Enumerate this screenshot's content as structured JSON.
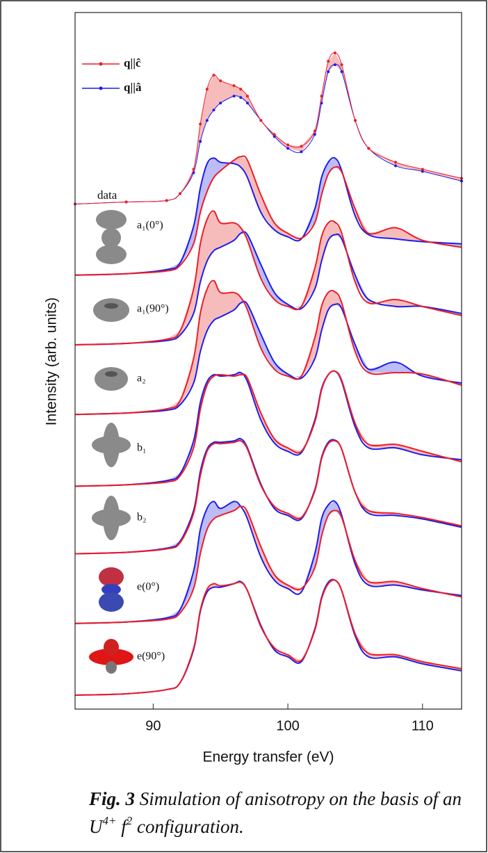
{
  "chart_data": {
    "type": "line",
    "xlabel": "Energy transfer (eV)",
    "ylabel": "Intensity (arb. units)",
    "x": [
      84.2,
      88,
      91,
      92,
      93,
      93.5,
      94,
      94.5,
      95,
      96,
      96.5,
      97,
      98,
      99,
      100,
      101,
      102,
      102.5,
      103,
      103.5,
      104,
      105,
      106,
      108,
      110,
      112.9
    ],
    "xlim": [
      84.2,
      112.9
    ],
    "xticks": [
      90,
      100,
      110
    ],
    "ylim": [
      0,
      1000
    ],
    "data_label": "data",
    "series": [
      {
        "name": "q||ĉ",
        "color": "#ee1c25",
        "values": [
          725,
          728,
          730,
          740,
          775,
          840,
          890,
          910,
          902,
          895,
          890,
          880,
          845,
          825,
          810,
          808,
          830,
          880,
          930,
          942,
          925,
          845,
          805,
          785,
          775,
          762
        ]
      },
      {
        "name": "q||â",
        "color": "#1c1cee",
        "values": [
          725,
          728,
          730,
          740,
          770,
          815,
          845,
          860,
          870,
          880,
          878,
          870,
          845,
          822,
          805,
          800,
          825,
          870,
          915,
          925,
          915,
          845,
          805,
          780,
          772,
          758
        ]
      }
    ],
    "panels": [
      {
        "label": "a₁(0°)",
        "values_c": [
          623,
          625,
          629,
          637,
          668,
          713,
          743,
          763,
          773,
          788,
          793,
          788,
          738,
          698,
          683,
          676,
          698,
          738,
          768,
          778,
          771,
          718,
          683,
          691,
          673,
          663
        ],
        "values_a": [
          623,
          625,
          631,
          641,
          693,
          748,
          783,
          791,
          785,
          783,
          778,
          763,
          713,
          688,
          678,
          675,
          718,
          763,
          785,
          791,
          773,
          708,
          681,
          675,
          671,
          668
        ]
      },
      {
        "label": "a₁(90°)",
        "values_c": [
          523,
          525,
          531,
          543,
          603,
          668,
          703,
          715,
          698,
          698,
          691,
          673,
          618,
          588,
          578,
          578,
          633,
          678,
          698,
          699,
          683,
          613,
          583,
          588,
          578,
          565
        ],
        "values_a": [
          523,
          525,
          529,
          537,
          568,
          613,
          643,
          658,
          663,
          673,
          683,
          681,
          638,
          598,
          581,
          575,
          603,
          643,
          673,
          681,
          675,
          623,
          588,
          578,
          578,
          568
        ]
      },
      {
        "label": "a₂",
        "values_c": [
          423,
          425,
          431,
          443,
          503,
          568,
          603,
          615,
          598,
          598,
          591,
          573,
          518,
          488,
          478,
          478,
          533,
          578,
          598,
          599,
          583,
          513,
          483,
          483,
          481,
          465
        ],
        "values_a": [
          423,
          425,
          429,
          437,
          468,
          513,
          543,
          558,
          563,
          573,
          583,
          581,
          538,
          498,
          481,
          475,
          503,
          543,
          573,
          581,
          575,
          523,
          488,
          498,
          478,
          468
        ]
      },
      {
        "label": "b₁",
        "values_c": [
          320,
          322,
          326,
          335,
          375,
          430,
          465,
          478,
          480,
          478,
          480,
          475,
          425,
          388,
          375,
          370,
          412,
          458,
          480,
          485,
          472,
          410,
          380,
          380,
          370,
          355
        ],
        "values_a": [
          320,
          322,
          328,
          338,
          385,
          440,
          470,
          480,
          478,
          480,
          483,
          470,
          415,
          382,
          370,
          368,
          415,
          460,
          480,
          485,
          470,
          405,
          375,
          375,
          365,
          358
        ]
      },
      {
        "label": "b₂",
        "values_c": [
          223,
          225,
          230,
          239,
          281,
          335,
          370,
          381,
          381,
          383,
          385,
          373,
          321,
          291,
          281,
          275,
          313,
          359,
          381,
          385,
          373,
          311,
          285,
          281,
          275,
          263
        ],
        "values_a": [
          223,
          225,
          231,
          241,
          285,
          341,
          373,
          383,
          383,
          385,
          388,
          375,
          323,
          288,
          278,
          273,
          315,
          361,
          383,
          386,
          373,
          311,
          281,
          278,
          273,
          261
        ]
      },
      {
        "label": "e(0°)",
        "values_c": [
          123,
          125,
          129,
          138,
          173,
          223,
          258,
          273,
          278,
          285,
          291,
          283,
          233,
          193,
          178,
          173,
          203,
          248,
          278,
          285,
          275,
          213,
          183,
          183,
          173,
          161
        ],
        "values_a": [
          123,
          125,
          131,
          143,
          198,
          258,
          288,
          298,
          288,
          298,
          291,
          273,
          218,
          185,
          173,
          168,
          223,
          273,
          293,
          298,
          278,
          208,
          178,
          178,
          171,
          163
        ]
      },
      {
        "label": "e(90°)",
        "values_c": [
          20,
          22,
          28,
          38,
          87,
          142,
          172,
          180,
          177,
          180,
          182,
          170,
          118,
          88,
          78,
          70,
          113,
          158,
          180,
          185,
          170,
          108,
          80,
          78,
          68,
          58
        ],
        "values_a": [
          20,
          22,
          28,
          38,
          85,
          140,
          168,
          175,
          175,
          180,
          183,
          170,
          120,
          85,
          75,
          68,
          115,
          160,
          182,
          185,
          170,
          105,
          75,
          75,
          65,
          55
        ]
      }
    ]
  },
  "caption": {
    "label": "Fig. 3",
    "text": "Simulation of anisotropy on the basis of an",
    "ion": "U",
    "charge": "4+",
    "orbital": "f",
    "power": "2",
    "end": "configuration."
  }
}
